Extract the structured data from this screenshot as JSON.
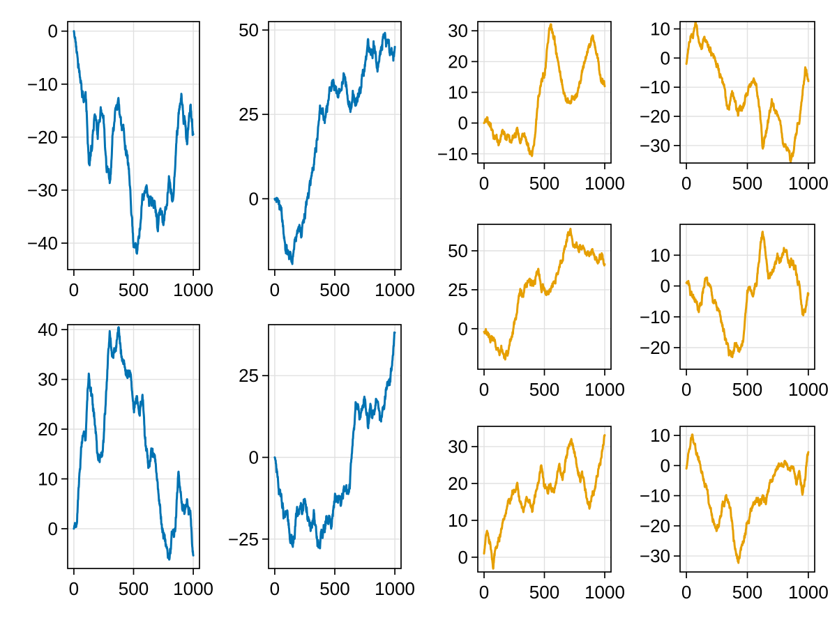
{
  "figure": {
    "background": "#FFFFFF",
    "palette": {
      "blue": "#0072B2",
      "orange": "#E69F00"
    },
    "grid_color": "#E0E0E0",
    "spine_color": "#000000",
    "tick_label_color": "#000000"
  },
  "chart_data": [
    {
      "id": "random-walk-blue-col1-row1",
      "type": "line",
      "series_color": "#0072B2",
      "line_width": 3,
      "grid": true,
      "x_ticks": [
        0,
        500,
        1000
      ],
      "y_ticks": [
        0,
        -10,
        -20,
        -30,
        -40
      ],
      "xlim": [
        -52,
        1052
      ],
      "ylim": [
        -45,
        1.8
      ],
      "x_range": [
        0,
        1000
      ],
      "values": [
        0,
        -4,
        -8,
        -11,
        -13,
        -26,
        -22,
        -15,
        -19,
        -14,
        -18,
        -25,
        -29,
        -20,
        -16,
        -14,
        -18,
        -20,
        -23,
        -33,
        -41,
        -43,
        -38,
        -33,
        -30,
        -32,
        -34,
        -31,
        -35,
        -34,
        -37,
        -33,
        -29,
        -31,
        -25,
        -17,
        -13,
        -16,
        -21,
        -14,
        -19
      ]
    },
    {
      "id": "random-walk-blue-col2-row1",
      "type": "line",
      "series_color": "#0072B2",
      "line_width": 3,
      "grid": true,
      "x_ticks": [
        0,
        500,
        1000
      ],
      "y_ticks": [
        0,
        25,
        50
      ],
      "xlim": [
        -52,
        1052
      ],
      "ylim": [
        -21,
        52.5
      ],
      "x_range": [
        0,
        1000
      ],
      "values": [
        0,
        -1,
        -3,
        -9,
        -13,
        -15,
        -16,
        -12,
        -9,
        -11,
        -6,
        -2,
        3,
        10,
        17,
        24,
        27,
        24,
        29,
        32,
        33,
        30,
        34,
        36,
        33,
        29,
        32,
        28,
        31,
        35,
        39,
        43,
        41,
        44,
        39,
        42,
        46,
        48,
        44,
        43,
        46
      ]
    },
    {
      "id": "random-walk-blue-col1-row2",
      "type": "line",
      "series_color": "#0072B2",
      "line_width": 3,
      "grid": true,
      "x_ticks": [
        0,
        500,
        1000
      ],
      "y_ticks": [
        0,
        10,
        20,
        30,
        40
      ],
      "xlim": [
        -52,
        1052
      ],
      "ylim": [
        -8,
        41
      ],
      "x_range": [
        0,
        1000
      ],
      "values": [
        0,
        3,
        13,
        19,
        18,
        32,
        26,
        22,
        16,
        15,
        18,
        27,
        38,
        33,
        36,
        39,
        34,
        31,
        29,
        32,
        26,
        28,
        24,
        27,
        17,
        13,
        15,
        12,
        9,
        4,
        0,
        -3,
        -5,
        -2,
        1,
        12,
        6,
        3,
        7,
        3,
        -5
      ]
    },
    {
      "id": "random-walk-blue-col2-row2",
      "type": "line",
      "series_color": "#0072B2",
      "line_width": 3,
      "grid": true,
      "x_ticks": [
        0,
        500,
        1000
      ],
      "y_ticks": [
        25,
        0,
        -25
      ],
      "xlim": [
        -52,
        1052
      ],
      "ylim": [
        -34,
        40.6
      ],
      "x_range": [
        0,
        1000
      ],
      "values": [
        0,
        -6,
        -13,
        -20,
        -18,
        -23,
        -25,
        -20,
        -16,
        -18,
        -14,
        -17,
        -20,
        -16,
        -27,
        -30,
        -24,
        -18,
        -16,
        -19,
        -13,
        -10,
        -12,
        -8,
        -10,
        -7,
        3,
        14,
        16,
        14,
        17,
        11,
        15,
        13,
        17,
        8,
        16,
        20,
        22,
        27,
        38
      ]
    },
    {
      "id": "random-walk-orange-col3-row1",
      "type": "line",
      "series_color": "#E69F00",
      "line_width": 3,
      "grid": true,
      "x_ticks": [
        0,
        500,
        1000
      ],
      "y_ticks": [
        30,
        20,
        10,
        0,
        -10
      ],
      "xlim": [
        -52,
        1052
      ],
      "ylim": [
        -13,
        33
      ],
      "x_range": [
        0,
        1000
      ],
      "values": [
        0,
        1,
        -2,
        -6,
        -4,
        -7,
        -4,
        -6,
        -3,
        -6,
        -4,
        -2,
        -5,
        -4,
        -5,
        -8,
        -10,
        -3,
        8,
        13,
        15,
        24,
        31,
        28,
        22,
        16,
        11,
        10,
        8,
        6,
        7,
        9,
        13,
        18,
        22,
        26,
        28,
        24,
        19,
        14,
        13
      ]
    },
    {
      "id": "random-walk-orange-col4-row1",
      "type": "line",
      "series_color": "#E69F00",
      "line_width": 3,
      "grid": true,
      "x_ticks": [
        0,
        500,
        1000
      ],
      "y_ticks": [
        10,
        0,
        -10,
        -20,
        -30
      ],
      "xlim": [
        -52,
        1052
      ],
      "ylim": [
        -36,
        12.5
      ],
      "x_range": [
        0,
        1000
      ],
      "values": [
        -2,
        4,
        9,
        11,
        6,
        3,
        6,
        4,
        2,
        0,
        -3,
        -6,
        -10,
        -14,
        -17,
        -13,
        -16,
        -20,
        -17,
        -15,
        -12,
        -9,
        -8,
        -10,
        -18,
        -31,
        -26,
        -21,
        -16,
        -18,
        -21,
        -25,
        -29,
        -32,
        -35,
        -33,
        -28,
        -22,
        -14,
        -5,
        -6
      ]
    },
    {
      "id": "random-walk-orange-col3-row2",
      "type": "line",
      "series_color": "#E69F00",
      "line_width": 3,
      "grid": true,
      "x_ticks": [
        0,
        500,
        1000
      ],
      "y_ticks": [
        50,
        25,
        0
      ],
      "xlim": [
        -52,
        1052
      ],
      "ylim": [
        -26,
        67
      ],
      "x_range": [
        0,
        1000
      ],
      "values": [
        -2,
        -5,
        -4,
        -7,
        -14,
        -18,
        -15,
        -16,
        -12,
        -6,
        2,
        14,
        22,
        24,
        26,
        32,
        30,
        33,
        36,
        27,
        26,
        25,
        27,
        30,
        35,
        40,
        47,
        55,
        61,
        62,
        57,
        52,
        50,
        52,
        49,
        50,
        48,
        47,
        46,
        44,
        37
      ]
    },
    {
      "id": "random-walk-orange-col4-row2",
      "type": "line",
      "series_color": "#E69F00",
      "line_width": 3,
      "grid": true,
      "x_ticks": [
        0,
        500,
        1000
      ],
      "y_ticks": [
        10,
        0,
        -10,
        -20
      ],
      "xlim": [
        -52,
        1052
      ],
      "ylim": [
        -27,
        20
      ],
      "x_range": [
        0,
        1000
      ],
      "values": [
        1,
        0,
        -3,
        -6,
        -8,
        -4,
        2,
        0,
        -2,
        -4,
        -6,
        -10,
        -14,
        -18,
        -21,
        -23,
        -19,
        -20,
        -18,
        -15,
        -2,
        -1,
        -3,
        0,
        9,
        17,
        10,
        2,
        4,
        8,
        9,
        7,
        12,
        10,
        7,
        9,
        4,
        0,
        -8,
        -9,
        -3
      ]
    },
    {
      "id": "random-walk-orange-col3-row3",
      "type": "line",
      "series_color": "#E69F00",
      "line_width": 3,
      "grid": true,
      "x_ticks": [
        0,
        500,
        1000
      ],
      "y_ticks": [
        30,
        20,
        10,
        0
      ],
      "xlim": [
        -52,
        1052
      ],
      "ylim": [
        -4,
        35.5
      ],
      "x_range": [
        0,
        1000
      ],
      "values": [
        1,
        7,
        4,
        -2,
        3,
        6,
        8,
        11,
        14,
        16,
        18,
        20,
        15,
        12,
        16,
        15,
        12,
        16,
        20,
        25,
        19,
        18,
        21,
        17,
        20,
        24,
        21,
        25,
        30,
        31,
        27,
        24,
        20,
        22,
        16,
        13,
        17,
        19,
        24,
        28,
        33
      ]
    },
    {
      "id": "random-walk-orange-col4-row3",
      "type": "line",
      "series_color": "#E69F00",
      "line_width": 3,
      "grid": true,
      "x_ticks": [
        0,
        500,
        1000
      ],
      "y_ticks": [
        10,
        0,
        -10,
        -20,
        -30
      ],
      "xlim": [
        -52,
        1052
      ],
      "ylim": [
        -35.3,
        13
      ],
      "x_range": [
        0,
        1000
      ],
      "values": [
        -1,
        4,
        10,
        5,
        3,
        -2,
        -6,
        -10,
        -14,
        -18,
        -21,
        -17,
        -12,
        -10,
        -14,
        -19,
        -27,
        -32,
        -28,
        -23,
        -19,
        -15,
        -13,
        -11,
        -13,
        -10,
        -12,
        -8,
        -5,
        -2,
        -1,
        0,
        -1,
        1,
        -2,
        0,
        -4,
        -2,
        -8,
        -4,
        4
      ]
    }
  ]
}
